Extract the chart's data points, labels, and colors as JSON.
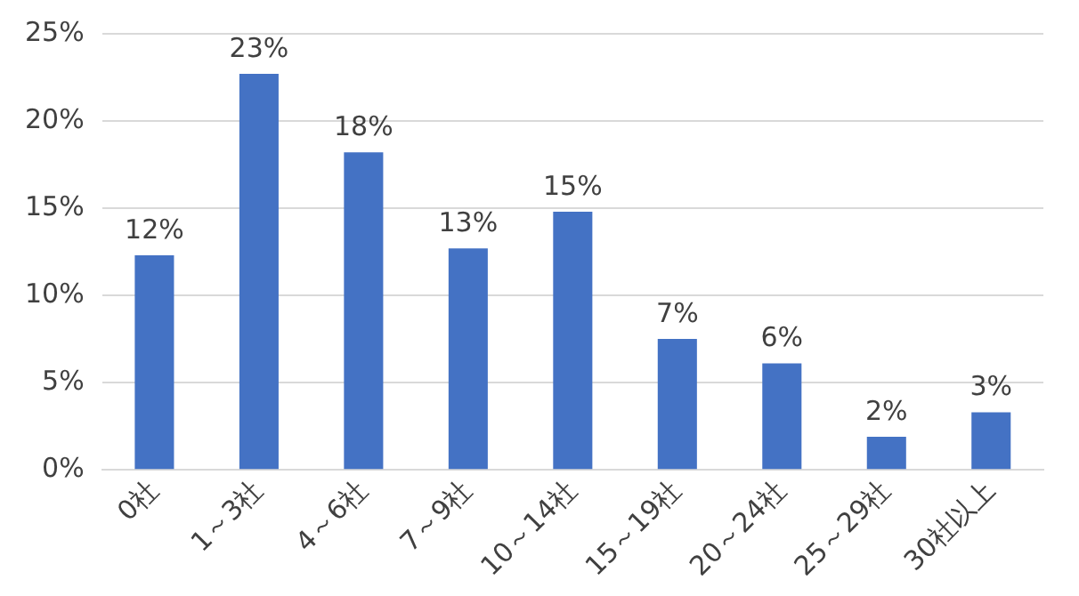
{
  "chart_data": {
    "type": "bar",
    "categories": [
      "0社",
      "1～3社",
      "4～6社",
      "7～9社",
      "10～14社",
      "15～19社",
      "20～24社",
      "25～29社",
      "30社以上"
    ],
    "values": [
      12.3,
      22.7,
      18.2,
      12.7,
      14.8,
      7.5,
      6.1,
      1.9,
      3.3
    ],
    "value_labels": [
      "12%",
      "23%",
      "18%",
      "13%",
      "15%",
      "7%",
      "6%",
      "2%",
      "3%"
    ],
    "color": "#4472c4",
    "ylim": [
      0,
      25
    ],
    "yticks": [
      {
        "value": 0,
        "label": "0%"
      },
      {
        "value": 5,
        "label": "5%"
      },
      {
        "value": 10,
        "label": "10%"
      },
      {
        "value": 15,
        "label": "15%"
      },
      {
        "value": 20,
        "label": "20%"
      },
      {
        "value": 25,
        "label": "25%"
      }
    ],
    "grid": "y"
  }
}
